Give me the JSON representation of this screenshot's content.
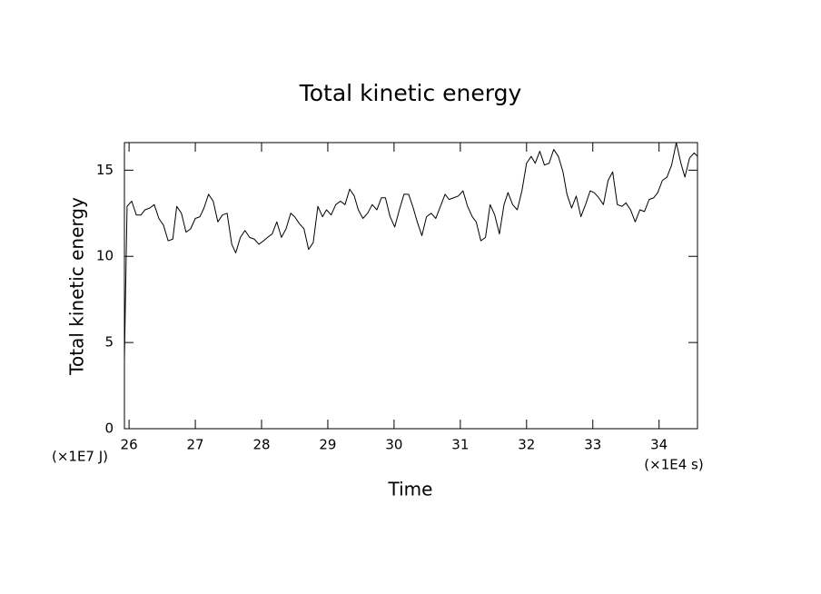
{
  "chart_data": {
    "type": "line",
    "title": "Total kinetic energy",
    "x_label": "Time",
    "y_label": "Total kinetic energy",
    "x_unit": "(×1E4 s)",
    "y_unit": "(×1E7 J)",
    "xlim": [
      25.93,
      34.58
    ],
    "ylim": [
      0,
      16.6
    ],
    "xticks": [
      26,
      27,
      28,
      29,
      30,
      31,
      32,
      33,
      34
    ],
    "yticks": [
      0,
      5,
      10,
      15
    ],
    "grid": false,
    "series": [
      {
        "color": "#000000",
        "x": [
          25.93,
          25.97,
          26.04,
          26.11,
          26.18,
          26.24,
          26.31,
          26.38,
          26.45,
          26.52,
          26.59,
          26.66,
          26.72,
          26.79,
          26.86,
          26.93,
          27.0,
          27.07,
          27.13,
          27.2,
          27.27,
          27.34,
          27.41,
          27.48,
          27.55,
          27.61,
          27.68,
          27.75,
          27.82,
          27.89,
          27.96,
          28.03,
          28.09,
          28.16,
          28.23,
          28.3,
          28.37,
          28.44,
          28.5,
          28.57,
          28.64,
          28.71,
          28.78,
          28.85,
          28.92,
          28.98,
          29.05,
          29.12,
          29.19,
          29.26,
          29.33,
          29.4,
          29.46,
          29.53,
          29.6,
          29.67,
          29.74,
          29.81,
          29.87,
          29.94,
          30.01,
          30.08,
          30.15,
          30.22,
          30.29,
          30.35,
          30.42,
          30.49,
          30.56,
          30.63,
          30.7,
          30.77,
          30.83,
          30.9,
          30.97,
          31.04,
          31.11,
          31.18,
          31.24,
          31.31,
          31.38,
          31.45,
          31.52,
          31.59,
          31.66,
          31.72,
          31.79,
          31.86,
          31.93,
          32.0,
          32.07,
          32.13,
          32.2,
          32.27,
          32.34,
          32.41,
          32.48,
          32.55,
          32.61,
          32.68,
          32.75,
          32.82,
          32.89,
          32.96,
          33.02,
          33.09,
          33.16,
          33.23,
          33.3,
          33.37,
          33.44,
          33.5,
          33.57,
          33.64,
          33.71,
          33.78,
          33.85,
          33.92,
          33.98,
          34.05,
          34.12,
          34.19,
          34.26,
          34.33,
          34.39,
          34.46,
          34.53,
          34.58
        ],
        "values": [
          4.0,
          12.9,
          13.2,
          12.4,
          12.4,
          12.7,
          12.8,
          13.0,
          12.2,
          11.8,
          10.9,
          11.0,
          12.9,
          12.5,
          11.4,
          11.6,
          12.2,
          12.3,
          12.8,
          13.6,
          13.2,
          12.0,
          12.4,
          12.5,
          10.7,
          10.2,
          11.1,
          11.5,
          11.1,
          11.0,
          10.7,
          10.9,
          11.1,
          11.3,
          12.0,
          11.1,
          11.6,
          12.5,
          12.3,
          11.9,
          11.6,
          10.4,
          10.8,
          12.9,
          12.3,
          12.7,
          12.4,
          13.0,
          13.2,
          13.0,
          13.9,
          13.5,
          12.7,
          12.2,
          12.5,
          13.0,
          12.7,
          13.4,
          13.4,
          12.3,
          11.7,
          12.7,
          13.6,
          13.6,
          12.8,
          12.0,
          11.2,
          12.3,
          12.5,
          12.2,
          12.9,
          13.6,
          13.3,
          13.4,
          13.5,
          13.8,
          12.9,
          12.3,
          12.0,
          10.9,
          11.1,
          13.0,
          12.4,
          11.3,
          13.0,
          13.7,
          13.0,
          12.7,
          13.8,
          15.4,
          15.8,
          15.4,
          16.1,
          15.3,
          15.4,
          16.2,
          15.8,
          14.9,
          13.6,
          12.8,
          13.5,
          12.3,
          13.0,
          13.8,
          13.7,
          13.4,
          13.0,
          14.4,
          14.9,
          13.0,
          12.9,
          13.1,
          12.7,
          12.0,
          12.7,
          12.6,
          13.3,
          13.4,
          13.7,
          14.4,
          14.6,
          15.3,
          16.6,
          15.4,
          14.6,
          15.7,
          16.0,
          15.8
        ]
      }
    ]
  }
}
